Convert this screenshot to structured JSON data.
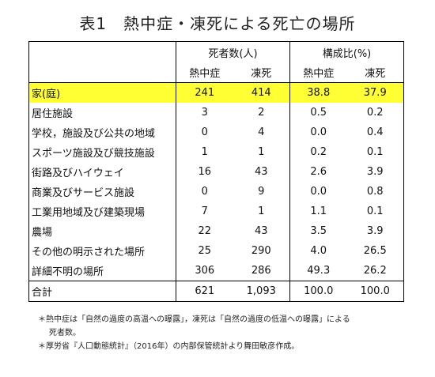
{
  "title": "表1　熱中症・凍死による死亡の場所",
  "header": {
    "group_deaths": "死者数(人)",
    "group_ratio": "構成比(%)",
    "sub": [
      "熱中症",
      "凍死",
      "熱中症",
      "凍死"
    ]
  },
  "rows": [
    {
      "label": "家(庭)",
      "values": [
        "241",
        "414",
        "38.8",
        "37.9"
      ],
      "highlight": true
    },
    {
      "label": "居住施設",
      "values": [
        "3",
        "2",
        "0.5",
        "0.2"
      ]
    },
    {
      "label": "学校，施設及び公共の地域",
      "values": [
        "0",
        "4",
        "0.0",
        "0.4"
      ]
    },
    {
      "label": "スポーツ施設及び競技施設",
      "values": [
        "1",
        "1",
        "0.2",
        "0.1"
      ]
    },
    {
      "label": "街路及びハイウェイ",
      "values": [
        "16",
        "43",
        "2.6",
        "3.9"
      ]
    },
    {
      "label": "商業及びサービス施設",
      "values": [
        "0",
        "9",
        "0.0",
        "0.8"
      ]
    },
    {
      "label": "工業用地域及び建築現場",
      "values": [
        "7",
        "1",
        "1.1",
        "0.1"
      ]
    },
    {
      "label": "農場",
      "values": [
        "22",
        "43",
        "3.5",
        "3.9"
      ]
    },
    {
      "label": "その他の明示された場所",
      "values": [
        "25",
        "290",
        "4.0",
        "26.5"
      ]
    },
    {
      "label": "詳細不明の場所",
      "values": [
        "306",
        "286",
        "49.3",
        "26.2"
      ]
    }
  ],
  "total": {
    "label": "合計",
    "values": [
      "621",
      "1,093",
      "100.0",
      "100.0"
    ]
  },
  "notes": {
    "note1_line1": "＊熱中症は「自然の過度の高温への曝露」，凍死は「自然の過度の低温への曝露」による",
    "note1_line2": "死者数。",
    "note2": "＊厚労省『人口動態統計』（2016年）の内部保管統計より舞田敏彦作成。"
  },
  "colors": {
    "highlight": "#ffff33",
    "border": "#000000"
  }
}
